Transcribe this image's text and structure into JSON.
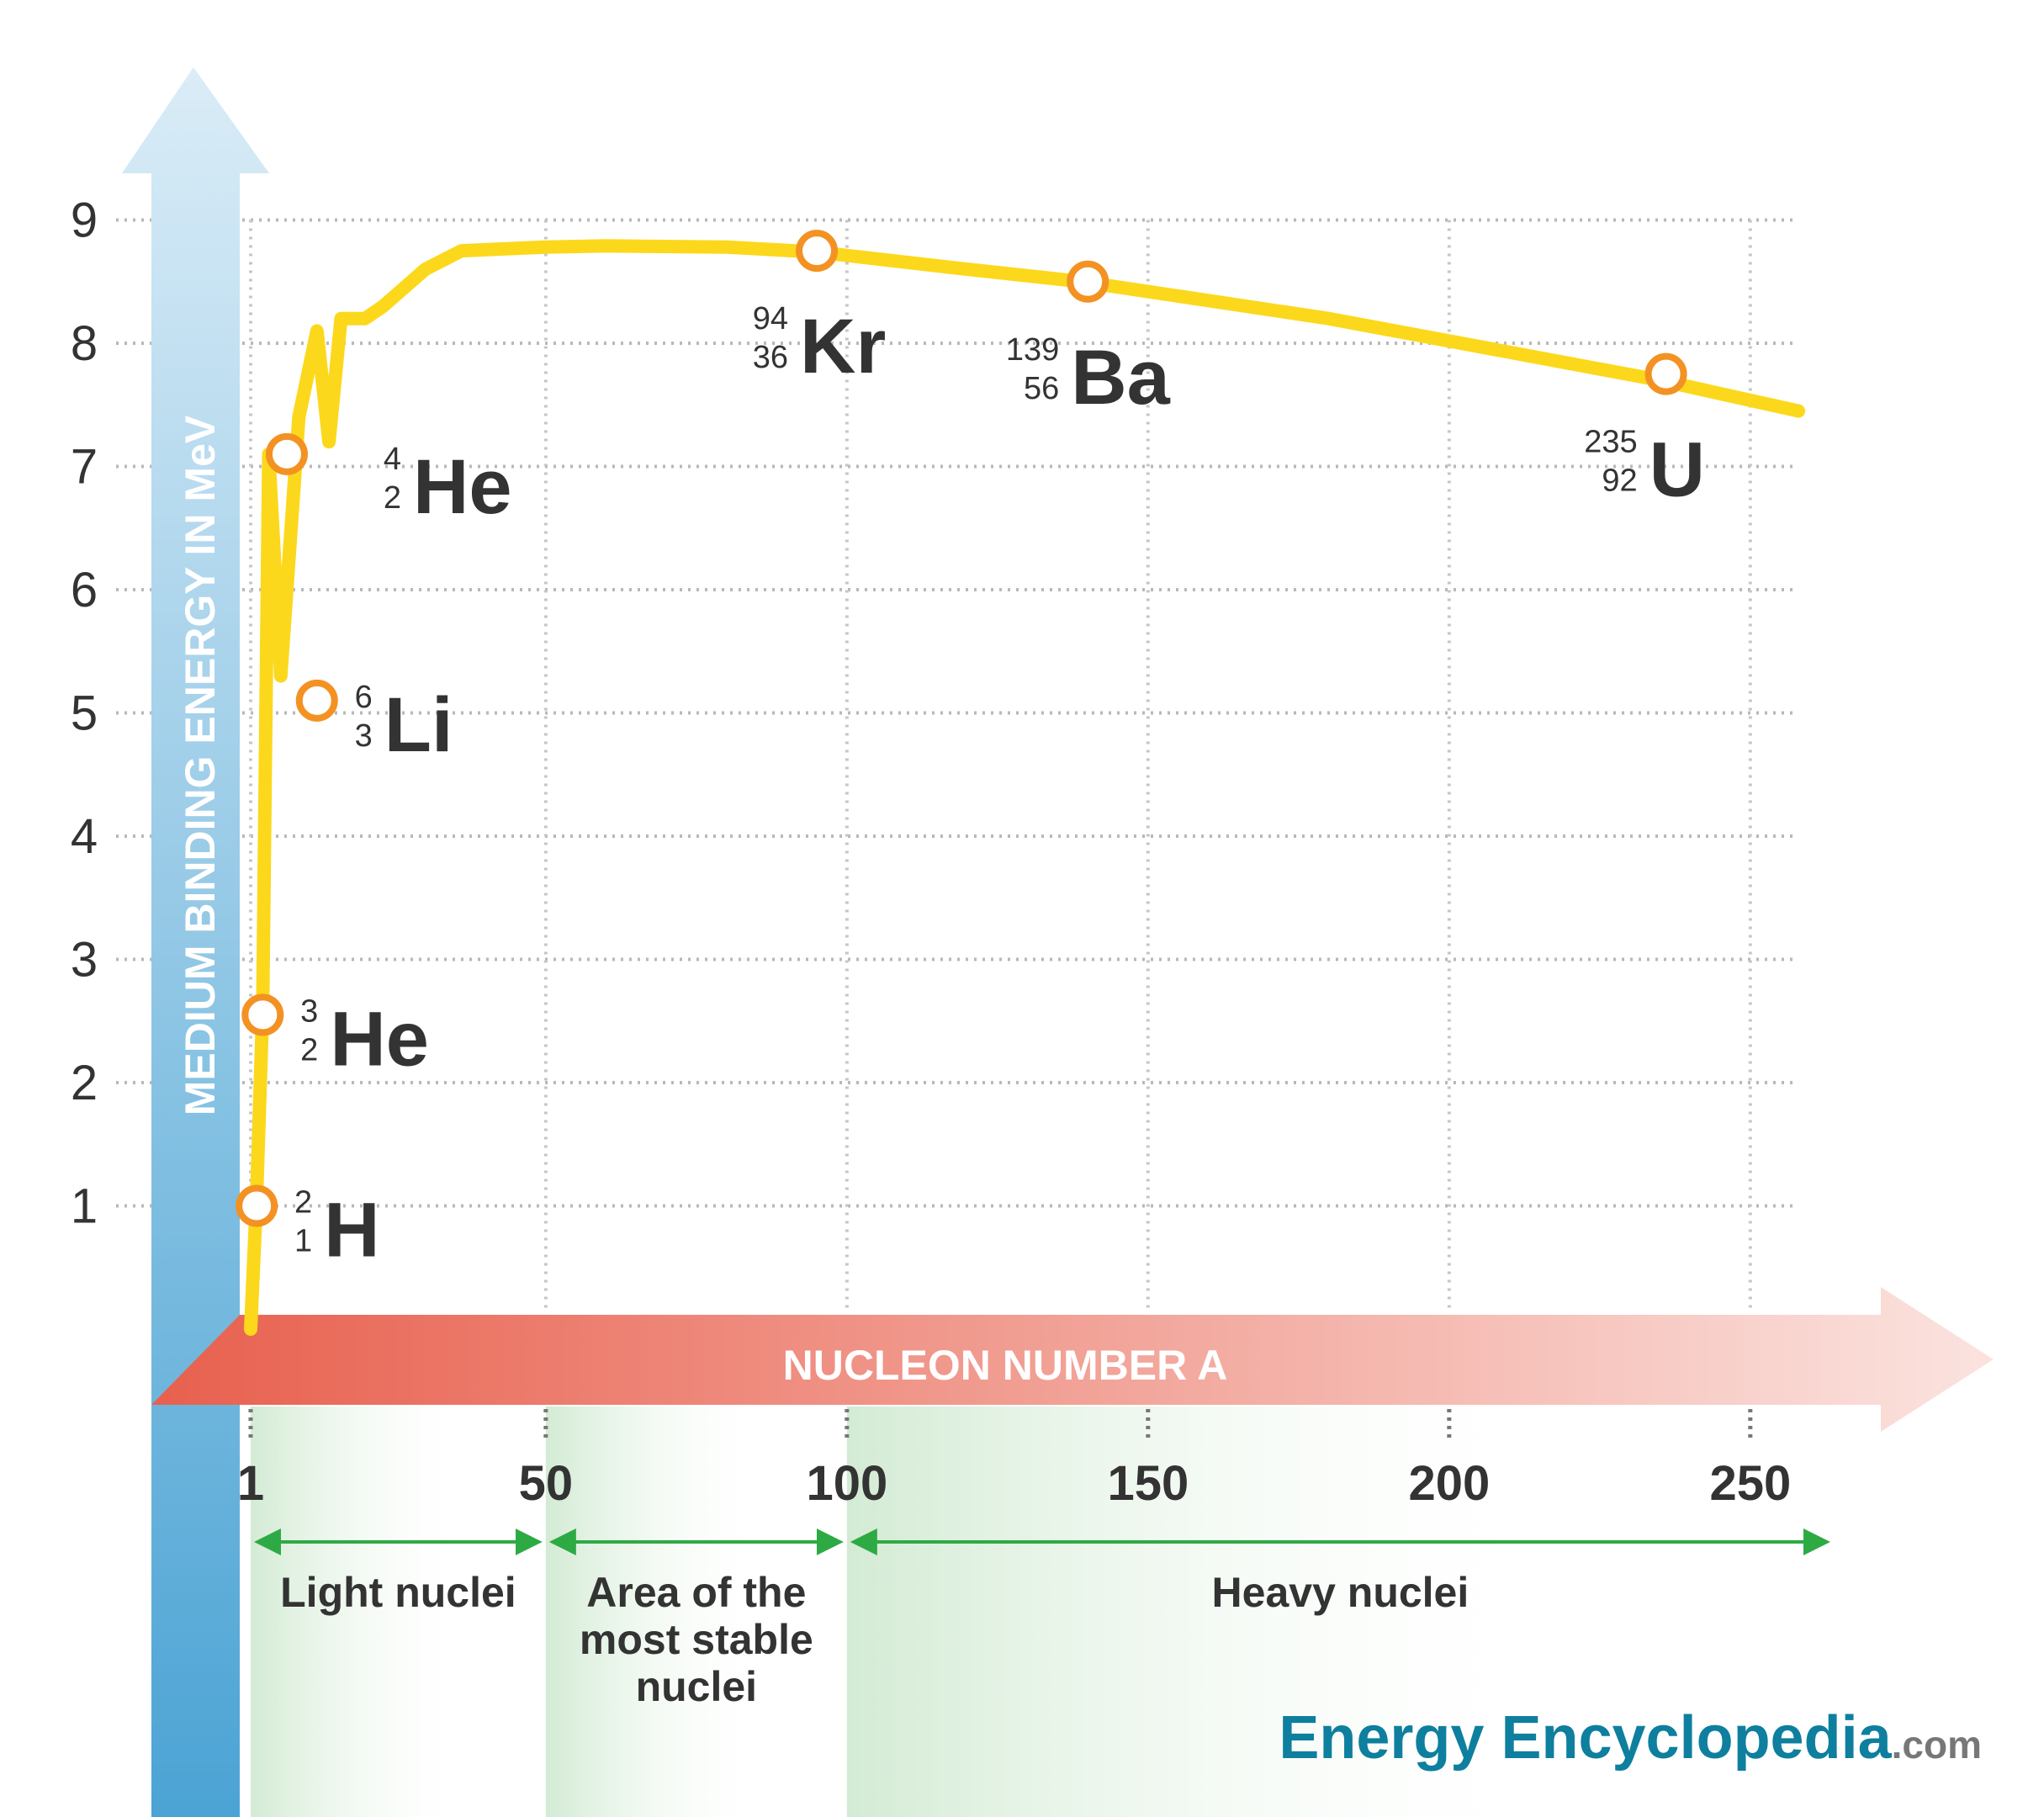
{
  "chart_data": {
    "type": "line",
    "title": "",
    "ylabel": "MEDIUM BINDING ENERGY IN MeV",
    "xlabel": "NUCLEON NUMBER A",
    "x_ticks": [
      "1",
      "50",
      "100",
      "150",
      "200",
      "250"
    ],
    "y_ticks": [
      "1",
      "2",
      "3",
      "4",
      "5",
      "6",
      "7",
      "8",
      "9"
    ],
    "xlim": [
      1,
      260
    ],
    "ylim": [
      0,
      9
    ],
    "grid": true,
    "series": [
      {
        "x": [
          1,
          2,
          3,
          4,
          6,
          9,
          12,
          14,
          16,
          20,
          23,
          30,
          36,
          50,
          60,
          80,
          95,
          120,
          139,
          180,
          235,
          258
        ],
        "values": [
          0,
          1.1,
          2.6,
          7.1,
          5.3,
          7.4,
          8.1,
          7.2,
          8.2,
          8.2,
          8.3,
          8.6,
          8.75,
          8.78,
          8.79,
          8.78,
          8.74,
          8.6,
          8.5,
          8.2,
          7.7,
          7.45
        ]
      }
    ],
    "markers": [
      {
        "mass": "2",
        "z": "1",
        "symbol": "H",
        "x": 2,
        "y": 1.0
      },
      {
        "mass": "3",
        "z": "2",
        "symbol": "He",
        "x": 3,
        "y": 2.55
      },
      {
        "mass": "6",
        "z": "3",
        "symbol": "Li",
        "x": 12,
        "y": 5.1
      },
      {
        "mass": "4",
        "z": "2",
        "symbol": "He",
        "x": 7,
        "y": 7.1
      },
      {
        "mass": "94",
        "z": "36",
        "symbol": "Kr",
        "x": 95,
        "y": 8.75
      },
      {
        "mass": "139",
        "z": "56",
        "symbol": "Ba",
        "x": 140,
        "y": 8.5
      },
      {
        "mass": "235",
        "z": "92",
        "symbol": "U",
        "x": 236,
        "y": 7.75
      }
    ],
    "regions": [
      {
        "lines": [
          "Light nuclei"
        ],
        "from": 1,
        "to": 50
      },
      {
        "lines": [
          "Area of the",
          "most stable",
          "nuclei"
        ],
        "from": 50,
        "to": 100
      },
      {
        "lines": [
          "Heavy nuclei"
        ],
        "from": 100,
        "to": 262
      }
    ],
    "colors": {
      "curve": "#fcd81c",
      "marker_ring": "#f39223",
      "y_arrow": "#4aa3d4",
      "x_arrow": "#e8604e",
      "region": "#d3ebd4",
      "region_arrow": "#2eaa44"
    }
  },
  "brand": {
    "part1": "Energy Encyclopedia",
    "part2": ".com"
  }
}
